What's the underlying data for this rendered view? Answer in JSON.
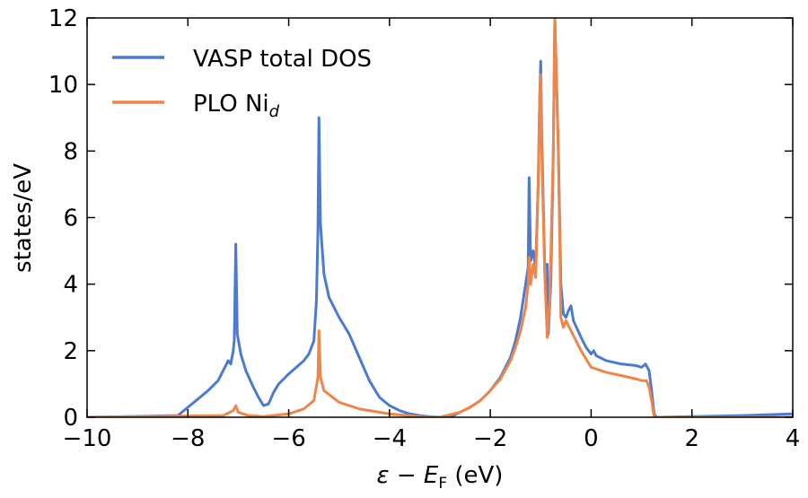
{
  "chart_data": {
    "type": "line",
    "xlabel": [
      "ε − E",
      "F",
      " (eV)"
    ],
    "ylabel": "states/eV",
    "xlim": [
      -10,
      4
    ],
    "ylim": [
      0,
      12
    ],
    "xticks": [
      {
        "value": -10,
        "label": "−10"
      },
      {
        "value": -8,
        "label": "−8"
      },
      {
        "value": -6,
        "label": "−6"
      },
      {
        "value": -4,
        "label": "−4"
      },
      {
        "value": -2,
        "label": "−2"
      },
      0,
      2,
      4
    ],
    "yticks": [
      0,
      2,
      4,
      6,
      8,
      10,
      12
    ],
    "legend": "upper left",
    "series": [
      {
        "name": "VASP total DOS",
        "color": "#4a7bd1",
        "x": [
          -10,
          -8.2,
          -8.0,
          -7.8,
          -7.6,
          -7.4,
          -7.3,
          -7.2,
          -7.15,
          -7.1,
          -7.08,
          -7.05,
          -7.02,
          -6.95,
          -6.85,
          -6.7,
          -6.6,
          -6.5,
          -6.4,
          -6.3,
          -6.2,
          -6.0,
          -5.85,
          -5.7,
          -5.6,
          -5.5,
          -5.45,
          -5.42,
          -5.4,
          -5.37,
          -5.3,
          -5.2,
          -5.0,
          -4.8,
          -4.6,
          -4.4,
          -4.2,
          -4.0,
          -3.8,
          -3.6,
          -3.4,
          -3.2,
          -3.0,
          -2.8,
          -2.6,
          -2.4,
          -2.2,
          -2.0,
          -1.8,
          -1.6,
          -1.5,
          -1.4,
          -1.3,
          -1.25,
          -1.23,
          -1.2,
          -1.15,
          -1.1,
          -1.05,
          -1.02,
          -1.0,
          -0.98,
          -0.92,
          -0.87,
          -0.85,
          -0.8,
          -0.75,
          -0.72,
          -0.65,
          -0.6,
          -0.55,
          -0.5,
          -0.45,
          -0.4,
          -0.35,
          -0.2,
          -0.1,
          0,
          0.05,
          0.1,
          0.3,
          0.6,
          0.9,
          1.0,
          1.08,
          1.15,
          1.2,
          1.25,
          1.3,
          2,
          3,
          4
        ],
        "values": [
          0,
          0.05,
          0.3,
          0.55,
          0.8,
          1.1,
          1.4,
          1.7,
          1.6,
          2.0,
          2.3,
          5.2,
          2.5,
          1.9,
          1.4,
          0.9,
          0.6,
          0.35,
          0.4,
          0.75,
          1.0,
          1.3,
          1.5,
          1.7,
          1.9,
          2.3,
          3.5,
          5.6,
          9.0,
          5.8,
          4.3,
          3.6,
          3.0,
          2.5,
          1.8,
          1.1,
          0.6,
          0.35,
          0.2,
          0.1,
          0.05,
          0.02,
          0,
          0,
          0.15,
          0.3,
          0.5,
          0.8,
          1.2,
          1.8,
          2.3,
          3.0,
          4.0,
          4.5,
          7.2,
          4.7,
          5.0,
          4.5,
          7,
          9.6,
          10.7,
          8.5,
          4.5,
          4.6,
          2.5,
          4.0,
          8,
          12,
          8,
          4,
          3.1,
          3.0,
          3.2,
          3.35,
          2.9,
          2.4,
          2.1,
          1.9,
          2.0,
          1.85,
          1.7,
          1.6,
          1.55,
          1.5,
          1.6,
          1.4,
          0.8,
          0.1,
          0,
          0.02,
          0.05,
          0.1
        ]
      },
      {
        "name": "PLO Ni",
        "name_sub": "d",
        "color": "#ef8548",
        "x": [
          -10,
          -7.3,
          -7.1,
          -7.05,
          -7.0,
          -6.8,
          -6.5,
          -6.0,
          -5.7,
          -5.5,
          -5.42,
          -5.4,
          -5.37,
          -5.3,
          -5.0,
          -4.6,
          -4.0,
          -3.5,
          -3.0,
          -2.6,
          -2.4,
          -2.2,
          -2.0,
          -1.8,
          -1.6,
          -1.5,
          -1.4,
          -1.3,
          -1.25,
          -1.23,
          -1.2,
          -1.15,
          -1.1,
          -1.05,
          -1.02,
          -1.0,
          -0.98,
          -0.92,
          -0.87,
          -0.82,
          -0.75,
          -0.72,
          -0.65,
          -0.6,
          -0.55,
          -0.5,
          -0.4,
          -0.2,
          0,
          0.3,
          0.6,
          0.9,
          1.0,
          1.1,
          1.15,
          1.2,
          1.25,
          2,
          4
        ],
        "values": [
          0,
          0.05,
          0.2,
          0.35,
          0.15,
          0.05,
          0.02,
          0.1,
          0.25,
          0.5,
          1.2,
          2.6,
          1.2,
          0.8,
          0.45,
          0.25,
          0.1,
          0.03,
          0,
          0.15,
          0.3,
          0.5,
          0.8,
          1.15,
          1.7,
          2.1,
          2.6,
          3.3,
          4.0,
          4.8,
          4.0,
          4.6,
          4.2,
          7,
          9.6,
          10.3,
          8,
          4.3,
          2.4,
          3.5,
          8,
          12,
          8,
          3.0,
          2.7,
          2.9,
          2.6,
          2.0,
          1.5,
          1.35,
          1.25,
          1.15,
          1.1,
          1.1,
          0.9,
          0.5,
          0,
          0,
          0
        ]
      }
    ]
  }
}
